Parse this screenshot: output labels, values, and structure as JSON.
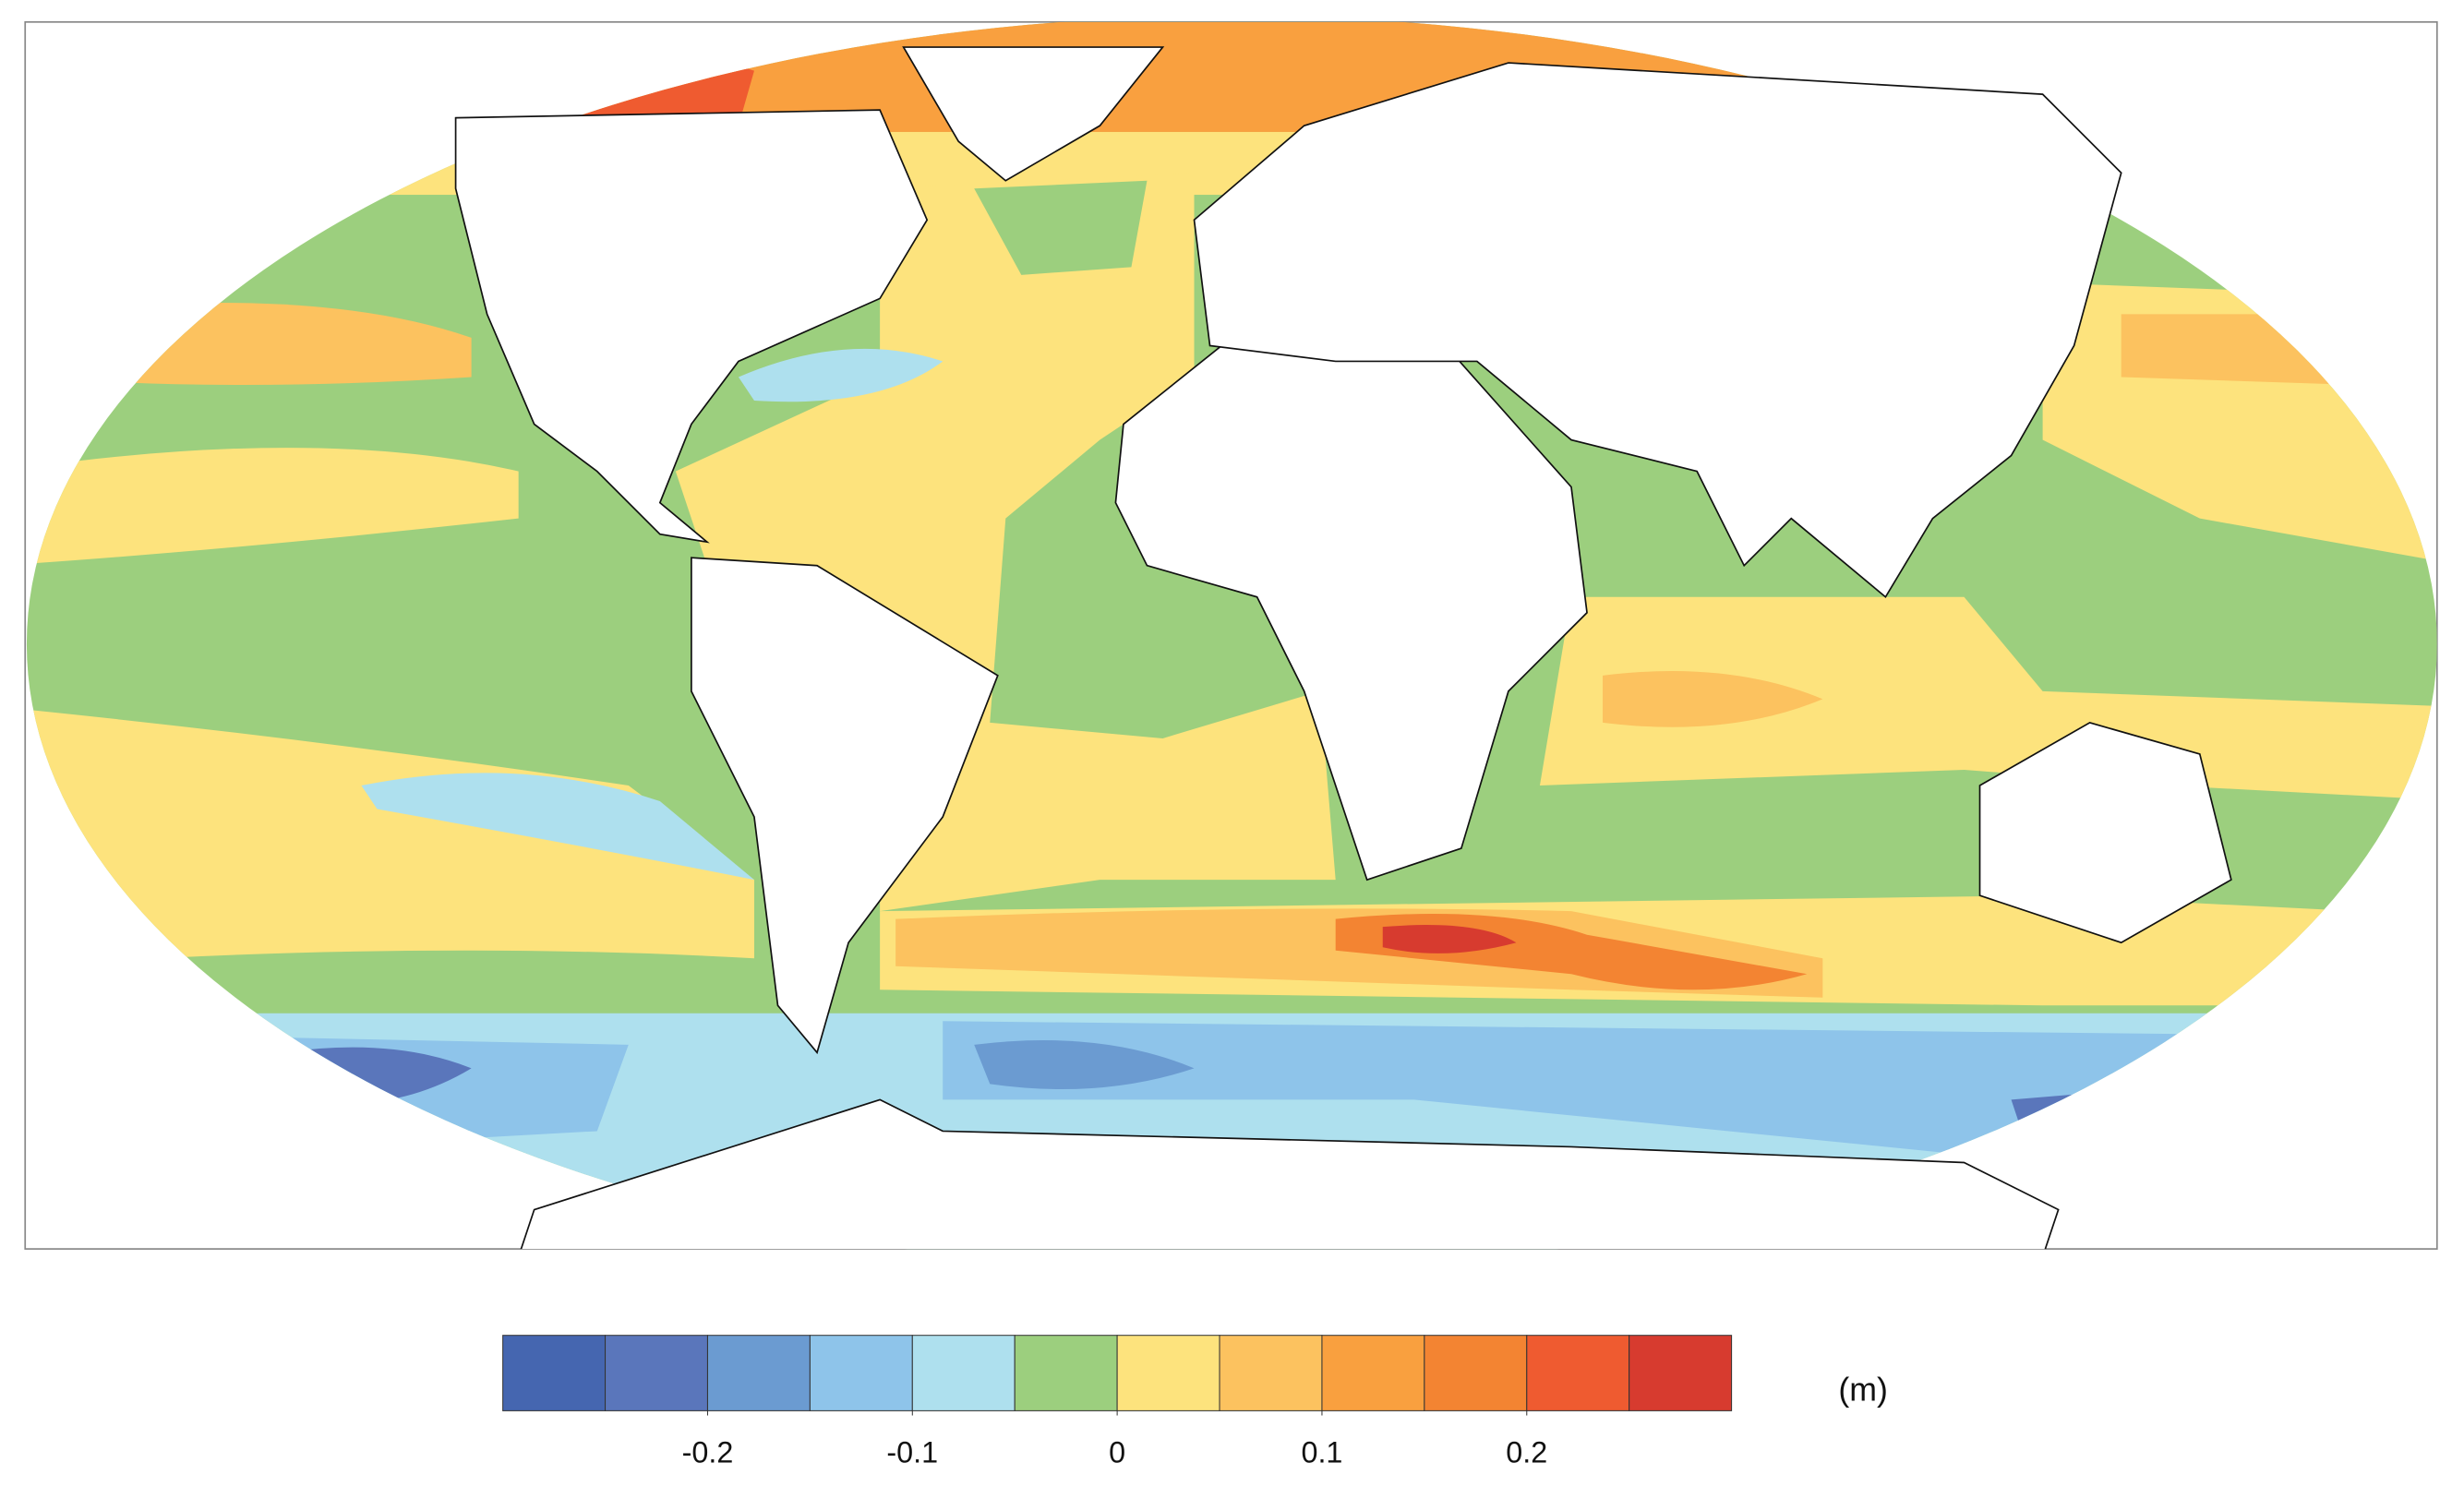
{
  "legend": {
    "levels": [
      -0.3,
      -0.25,
      -0.2,
      -0.15,
      -0.1,
      -0.05,
      0,
      0.05,
      0.1,
      0.15,
      0.2,
      0.25,
      0.3
    ],
    "colors": [
      "#4566b0",
      "#5a76bb",
      "#6b9bd1",
      "#8ec4ea",
      "#aee0ee",
      "#9ccf7e",
      "#fde37d",
      "#fcc25f",
      "#f9a03f",
      "#f38432",
      "#ef5b30",
      "#d73b2f"
    ],
    "ticks": [
      -0.2,
      -0.1,
      0,
      0.1,
      0.2
    ],
    "unit": "(m)"
  }
}
